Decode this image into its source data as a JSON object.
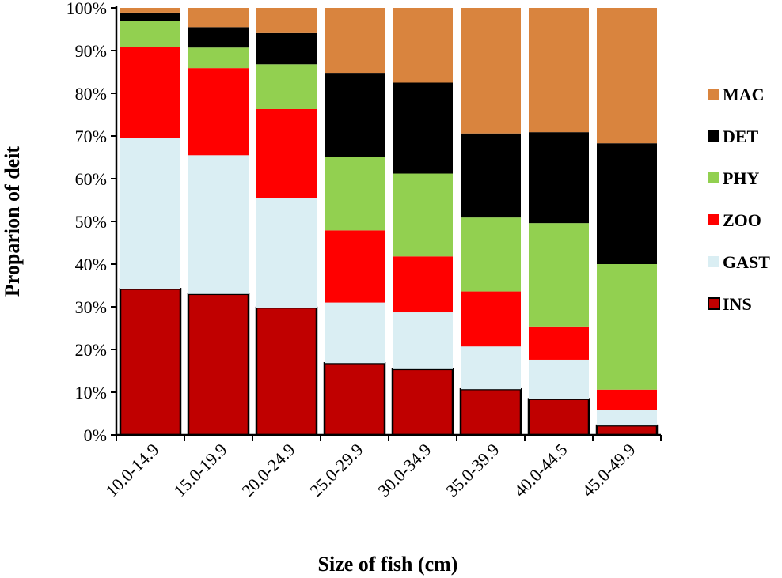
{
  "chart_data": {
    "type": "bar",
    "stacked": true,
    "normalized": true,
    "categories": [
      "10.0-14.9",
      "15.0-19.9",
      "20.0-24.9",
      "25.0-29.9",
      "30.0-34.9",
      "35.0-39.9",
      "40.0-44.5",
      "45.0-49.9"
    ],
    "series": [
      {
        "name": "INS",
        "color": "#c00000",
        "values": [
          34.2,
          33.0,
          29.8,
          16.8,
          15.4,
          10.7,
          8.4,
          2.2
        ]
      },
      {
        "name": "GAST",
        "color": "#daeef3",
        "values": [
          35.3,
          32.5,
          25.7,
          14.2,
          13.3,
          10.0,
          9.2,
          3.6
        ]
      },
      {
        "name": "ZOO",
        "color": "#ff0000",
        "values": [
          21.4,
          20.4,
          20.8,
          16.9,
          13.1,
          12.9,
          7.8,
          4.8
        ]
      },
      {
        "name": "PHY",
        "color": "#92d050",
        "values": [
          6.0,
          4.8,
          10.5,
          17.1,
          19.4,
          17.3,
          24.2,
          29.4
        ]
      },
      {
        "name": "DET",
        "color": "#000000",
        "values": [
          2.0,
          4.8,
          7.3,
          19.8,
          21.3,
          19.7,
          21.3,
          28.3
        ]
      },
      {
        "name": "MAC",
        "color": "#d9843e",
        "values": [
          1.1,
          4.5,
          5.9,
          15.2,
          17.5,
          29.4,
          29.1,
          31.7
        ]
      }
    ],
    "title": "",
    "xlabel": "Size of fish (cm)",
    "ylabel": "Proparion of deit",
    "ylim": [
      0,
      100
    ],
    "yticks": [
      "0%",
      "10%",
      "20%",
      "30%",
      "40%",
      "50%",
      "60%",
      "70%",
      "80%",
      "90%",
      "100%"
    ],
    "legend_order": [
      "MAC",
      "DET",
      "PHY",
      "ZOO",
      "GAST",
      "INS"
    ],
    "legend_position": "right",
    "grid": false
  }
}
